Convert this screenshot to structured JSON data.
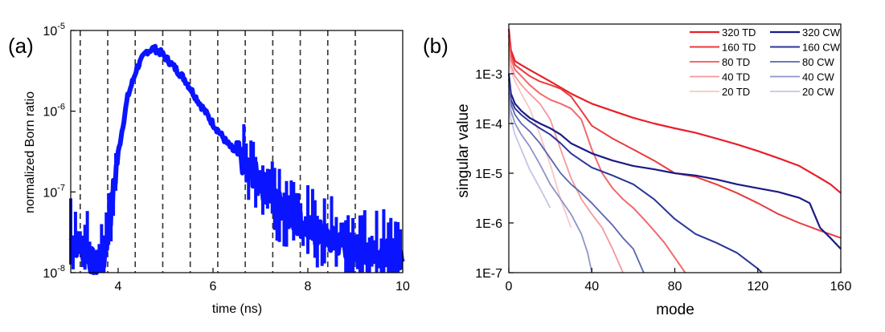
{
  "chart_data": [
    {
      "panel_label": "(a)",
      "type": "line",
      "xlabel": "time (ns)",
      "ylabel": "normalized Born ratio",
      "xlim": [
        3,
        10
      ],
      "ylim": [
        1e-08,
        1e-05
      ],
      "yscale": "log",
      "xticks": [
        4,
        6,
        8,
        10
      ],
      "xtick_labels": [
        "4",
        "6",
        "8",
        "10"
      ],
      "yticks": [
        1e-08,
        1e-07,
        1e-06,
        1e-05
      ],
      "ytick_labels": [
        {
          "base": "10",
          "exp": "-8"
        },
        {
          "base": "10",
          "exp": "-7"
        },
        {
          "base": "10",
          "exp": "-6"
        },
        {
          "base": "10",
          "exp": "-5"
        }
      ],
      "vlines": [
        3.2,
        3.78,
        4.36,
        4.94,
        5.52,
        6.1,
        6.68,
        7.26,
        7.84,
        8.42,
        9.0
      ],
      "series": [
        {
          "name": "born-ratio",
          "color": "#0a14ff",
          "x": [
            3.0,
            3.3,
            3.5,
            3.7,
            3.85,
            4.0,
            4.2,
            4.4,
            4.6,
            4.75,
            4.9,
            5.1,
            5.4,
            5.7,
            6.0,
            6.3,
            6.6,
            7.0,
            7.5,
            8.0,
            8.5,
            9.0,
            9.5,
            10.0
          ],
          "y": [
            2.5e-08,
            2e-08,
            1.2e-08,
            1.5e-08,
            6e-08,
            3e-07,
            1.5e-06,
            3.5e-06,
            5.5e-06,
            6e-06,
            5.3e-06,
            4e-06,
            2.5e-06,
            1.3e-06,
            7e-07,
            4e-07,
            2.5e-07,
            1.3e-07,
            6e-08,
            3.5e-08,
            2.5e-08,
            2e-08,
            1.8e-08,
            1.6e-08
          ]
        }
      ]
    },
    {
      "panel_label": "(b)",
      "type": "line",
      "xlabel": "mode",
      "ylabel": "singular value",
      "xlim": [
        0,
        160
      ],
      "ylim": [
        1e-07,
        0.01
      ],
      "yscale": "log",
      "xticks": [
        0,
        40,
        80,
        120,
        160
      ],
      "xtick_labels": [
        "0",
        "40",
        "80",
        "120",
        "160"
      ],
      "yticks": [
        1e-07,
        1e-06,
        1e-05,
        0.0001,
        0.001
      ],
      "ytick_labels": [
        "1E-7",
        "1E-6",
        "1E-5",
        "1E-4",
        "1E-3"
      ],
      "legend_position": "top-right",
      "series": [
        {
          "name": "320 TD",
          "color": "#e8202a",
          "width": 2.2,
          "x": [
            0,
            1,
            3,
            6,
            10,
            20,
            30,
            40,
            50,
            60,
            70,
            80,
            90,
            100,
            110,
            120,
            130,
            140,
            150,
            155,
            160
          ],
          "y": [
            0.008,
            0.003,
            0.0018,
            0.0015,
            0.0012,
            0.0007,
            0.0004,
            0.00025,
            0.00018,
            0.00013,
            0.0001,
            8e-05,
            6.5e-05,
            5e-05,
            3.8e-05,
            2.8e-05,
            2e-05,
            1.4e-05,
            8e-06,
            6e-06,
            4e-06
          ]
        },
        {
          "name": "160 TD",
          "color": "#ea3a3c",
          "width": 2.0,
          "x": [
            0,
            1,
            3,
            6,
            10,
            15,
            20,
            25,
            30,
            35,
            40,
            50,
            60,
            70,
            80,
            90,
            100,
            110,
            120,
            130,
            140,
            150,
            160
          ],
          "y": [
            0.006,
            0.0025,
            0.0015,
            0.0012,
            0.0009,
            0.0007,
            0.0006,
            0.0005,
            0.00035,
            0.00018,
            9e-05,
            5e-05,
            3e-05,
            1.8e-05,
            1e-05,
            8.5e-06,
            6e-06,
            4e-06,
            2.5e-06,
            1.5e-06,
            1e-06,
            7e-07,
            5e-07
          ]
        },
        {
          "name": "80 TD",
          "color": "#f06a6e",
          "width": 2.0,
          "x": [
            0,
            1,
            3,
            6,
            10,
            15,
            20,
            25,
            30,
            35,
            40,
            45,
            50,
            55,
            60,
            65,
            70,
            75,
            80,
            85
          ],
          "y": [
            0.004,
            0.002,
            0.0012,
            0.0009,
            0.0006,
            0.0004,
            0.0003,
            0.00025,
            0.0002,
            0.00012,
            3e-05,
            1e-05,
            5e-06,
            3e-06,
            2e-06,
            1.2e-06,
            7e-07,
            4e-07,
            2e-07,
            1e-07
          ]
        },
        {
          "name": "40 TD",
          "color": "#f4999b",
          "width": 1.8,
          "x": [
            0,
            1,
            3,
            6,
            10,
            15,
            20,
            25,
            30,
            35,
            40,
            45,
            50,
            55
          ],
          "y": [
            0.003,
            0.0015,
            0.0009,
            0.0006,
            0.0004,
            0.00025,
            0.00012,
            3e-05,
            8e-06,
            3e-06,
            1.5e-06,
            8e-07,
            3e-07,
            1e-07
          ]
        },
        {
          "name": "20 TD",
          "color": "#f8c6c7",
          "width": 1.8,
          "x": [
            0,
            1,
            3,
            6,
            10,
            15,
            20,
            25,
            30
          ],
          "y": [
            0.002,
            0.0012,
            0.0007,
            0.0004,
            0.0002,
            6e-05,
            1.5e-05,
            3e-06,
            8e-07
          ]
        },
        {
          "name": "320 CW",
          "color": "#1a1a86",
          "width": 2.2,
          "x": [
            0,
            1,
            3,
            6,
            10,
            15,
            20,
            25,
            30,
            40,
            50,
            60,
            70,
            80,
            90,
            100,
            110,
            120,
            130,
            140,
            145,
            150,
            155,
            160
          ],
          "y": [
            0.001,
            0.0004,
            0.00025,
            0.00018,
            0.00013,
            0.0001,
            8e-05,
            6e-05,
            4e-05,
            2.5e-05,
            1.8e-05,
            1.4e-05,
            1.2e-05,
            1e-05,
            9e-06,
            7.5e-06,
            6e-06,
            5e-06,
            4.2e-06,
            3.2e-06,
            2.5e-06,
            8e-07,
            5e-07,
            3e-07
          ]
        },
        {
          "name": "160 CW",
          "color": "#2c3598",
          "width": 2.0,
          "x": [
            0,
            1,
            3,
            6,
            10,
            15,
            20,
            25,
            30,
            35,
            40,
            50,
            60,
            70,
            80,
            90,
            100,
            110,
            120,
            122
          ],
          "y": [
            0.0008,
            0.0003,
            0.0002,
            0.00015,
            0.00011,
            8e-05,
            6e-05,
            4e-05,
            2.5e-05,
            1.8e-05,
            1.3e-05,
            9e-06,
            6e-06,
            3e-06,
            1.2e-06,
            6e-07,
            4e-07,
            2.5e-07,
            1.2e-07,
            1e-07
          ]
        },
        {
          "name": "80 CW",
          "color": "#5c65b0",
          "width": 1.8,
          "x": [
            0,
            1,
            3,
            6,
            10,
            15,
            20,
            25,
            30,
            35,
            40,
            45,
            50,
            55,
            60,
            65
          ],
          "y": [
            0.0006,
            0.00025,
            0.00015,
            0.0001,
            7e-05,
            4e-05,
            2e-05,
            1e-05,
            6e-06,
            4e-06,
            2.5e-06,
            1.5e-06,
            9e-07,
            5e-07,
            3e-07,
            1e-07
          ]
        },
        {
          "name": "40 CW",
          "color": "#8e95c8",
          "width": 1.8,
          "x": [
            0,
            1,
            3,
            6,
            10,
            15,
            20,
            25,
            30,
            35,
            38,
            40
          ],
          "y": [
            0.0004,
            0.00018,
            0.0001,
            6e-05,
            3.5e-05,
            1.5e-05,
            6e-06,
            3e-06,
            1.5e-06,
            6e-07,
            2.5e-07,
            1e-07
          ]
        },
        {
          "name": "20 CW",
          "color": "#c2c6e2",
          "width": 1.8,
          "x": [
            0,
            1,
            3,
            6,
            10,
            15,
            20
          ],
          "y": [
            0.0003,
            0.00012,
            6e-05,
            3e-05,
            1.2e-05,
            5e-06,
            2e-06
          ]
        }
      ]
    }
  ]
}
